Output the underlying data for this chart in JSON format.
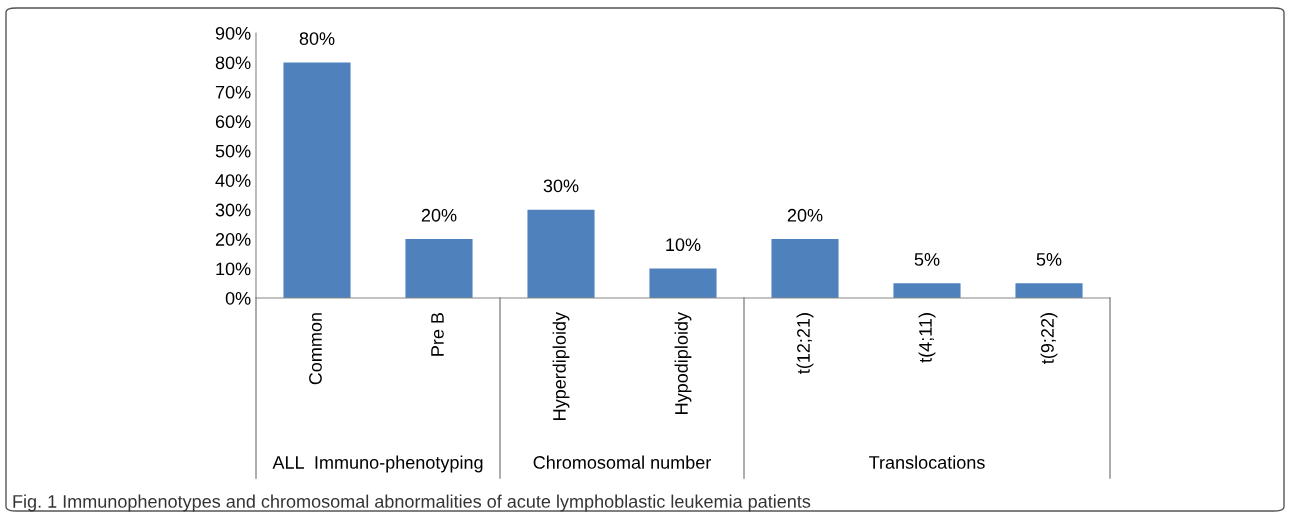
{
  "chart_data": {
    "type": "bar",
    "title": "Fig. 1 Immunophenotypes and chromosomal abnormalities of acute lymphoblastic leukemia patients",
    "categories": [
      "Common",
      "Pre B",
      "Hyperdiploidy",
      "Hypodiploidy",
      "t(12;21)",
      "t(4;11)",
      "t(9;22)"
    ],
    "values": [
      80,
      20,
      30,
      10,
      20,
      5,
      5
    ],
    "value_labels": [
      "80%",
      "20%",
      "30%",
      "10%",
      "20%",
      "5%",
      "5%"
    ],
    "color": "#4f81bd",
    "ylim": [
      0,
      90
    ],
    "yticks": [
      {
        "value": 0,
        "label": "0%"
      },
      {
        "value": 10,
        "label": "10%"
      },
      {
        "value": 20,
        "label": "20%"
      },
      {
        "value": 30,
        "label": "30%"
      },
      {
        "value": 40,
        "label": "40%"
      },
      {
        "value": 50,
        "label": "50%"
      },
      {
        "value": 60,
        "label": "60%"
      },
      {
        "value": 70,
        "label": "70%"
      },
      {
        "value": 80,
        "label": "80%"
      },
      {
        "value": 90,
        "label": "90%"
      }
    ],
    "annotations": [
      "ALL  Immuno-phenotyping",
      "Chromosomal number",
      "Translocations"
    ],
    "grid": false
  }
}
